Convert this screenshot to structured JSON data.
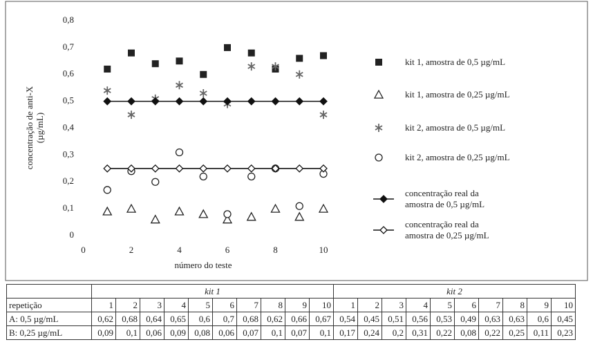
{
  "chart_data": {
    "type": "scatter",
    "ylabel": [
      "concentração de anti-X",
      "(µg/mL)"
    ],
    "xlabel": "número do teste",
    "x": [
      1,
      2,
      3,
      4,
      5,
      6,
      7,
      8,
      9,
      10
    ],
    "xlim": [
      0,
      10
    ],
    "xticks": [
      0,
      2,
      4,
      6,
      8,
      10
    ],
    "ylim": [
      0,
      0.8
    ],
    "yticks": [
      0,
      {
        "value": 0.1,
        "label": "0,1"
      },
      {
        "value": 0.2,
        "label": "0,2"
      },
      {
        "value": 0.3,
        "label": "0,3"
      },
      {
        "value": 0.4,
        "label": "0,4"
      },
      {
        "value": 0.5,
        "label": "0,5"
      },
      {
        "value": 0.6,
        "label": "0,6"
      },
      {
        "value": 0.7,
        "label": "0,7"
      },
      {
        "value": 0.8,
        "label": "0,8"
      }
    ],
    "grid": false,
    "series": [
      {
        "name": "kit 1, amostra de 0,5 µg/mL",
        "marker": "square",
        "line": false,
        "color": "#222222",
        "values": [
          0.62,
          0.68,
          0.64,
          0.65,
          0.6,
          0.7,
          0.68,
          0.62,
          0.66,
          0.67
        ]
      },
      {
        "name": "kit 1, amostra de 0,25 µg/mL",
        "marker": "triangle",
        "line": false,
        "color": "#222222",
        "values": [
          0.09,
          0.1,
          0.06,
          0.09,
          0.08,
          0.06,
          0.07,
          0.1,
          0.07,
          0.1
        ]
      },
      {
        "name": "kit 2, amostra de 0,5 µg/mL",
        "marker": "asterisk",
        "line": false,
        "color": "#666666",
        "values": [
          0.54,
          0.45,
          0.51,
          0.56,
          0.53,
          0.49,
          0.63,
          0.63,
          0.6,
          0.45
        ]
      },
      {
        "name": "kit 2, amostra de 0,25 µg/mL",
        "marker": "circle",
        "line": false,
        "color": "#222222",
        "values": [
          0.17,
          0.24,
          0.2,
          0.31,
          0.22,
          0.08,
          0.22,
          0.25,
          0.11,
          0.23
        ]
      },
      {
        "name": "concentração real da amostra de 0,5 µg/mL",
        "marker": "diamond-filled",
        "line": true,
        "color": "#111111",
        "values": [
          0.5,
          0.5,
          0.5,
          0.5,
          0.5,
          0.5,
          0.5,
          0.5,
          0.5,
          0.5
        ]
      },
      {
        "name": "concentração real da amostra de 0,25 µg/mL",
        "marker": "diamond-open",
        "line": true,
        "color": "#111111",
        "values": [
          0.25,
          0.25,
          0.25,
          0.25,
          0.25,
          0.25,
          0.25,
          0.25,
          0.25,
          0.25
        ]
      }
    ]
  },
  "table": {
    "groups": [
      "kit 1",
      "kit 2"
    ],
    "repetition_label": "repetição",
    "repetitions": [
      "1",
      "2",
      "3",
      "4",
      "5",
      "6",
      "7",
      "8",
      "9",
      "10",
      "1",
      "2",
      "3",
      "4",
      "5",
      "6",
      "7",
      "8",
      "9",
      "10"
    ],
    "rows": [
      {
        "label": "A: 0,5 µg/mL",
        "values": [
          "0,62",
          "0,68",
          "0,64",
          "0,65",
          "0,6",
          "0,7",
          "0,68",
          "0,62",
          "0,66",
          "0,67",
          "0,54",
          "0,45",
          "0,51",
          "0,56",
          "0,53",
          "0,49",
          "0,63",
          "0,63",
          "0,6",
          "0,45"
        ]
      },
      {
        "label": "B: 0,25 µg/mL",
        "values": [
          "0,09",
          "0,1",
          "0,06",
          "0,09",
          "0,08",
          "0,06",
          "0,07",
          "0,1",
          "0,07",
          "0,1",
          "0,17",
          "0,24",
          "0,2",
          "0,31",
          "0,22",
          "0,08",
          "0,22",
          "0,25",
          "0,11",
          "0,23"
        ]
      }
    ]
  }
}
